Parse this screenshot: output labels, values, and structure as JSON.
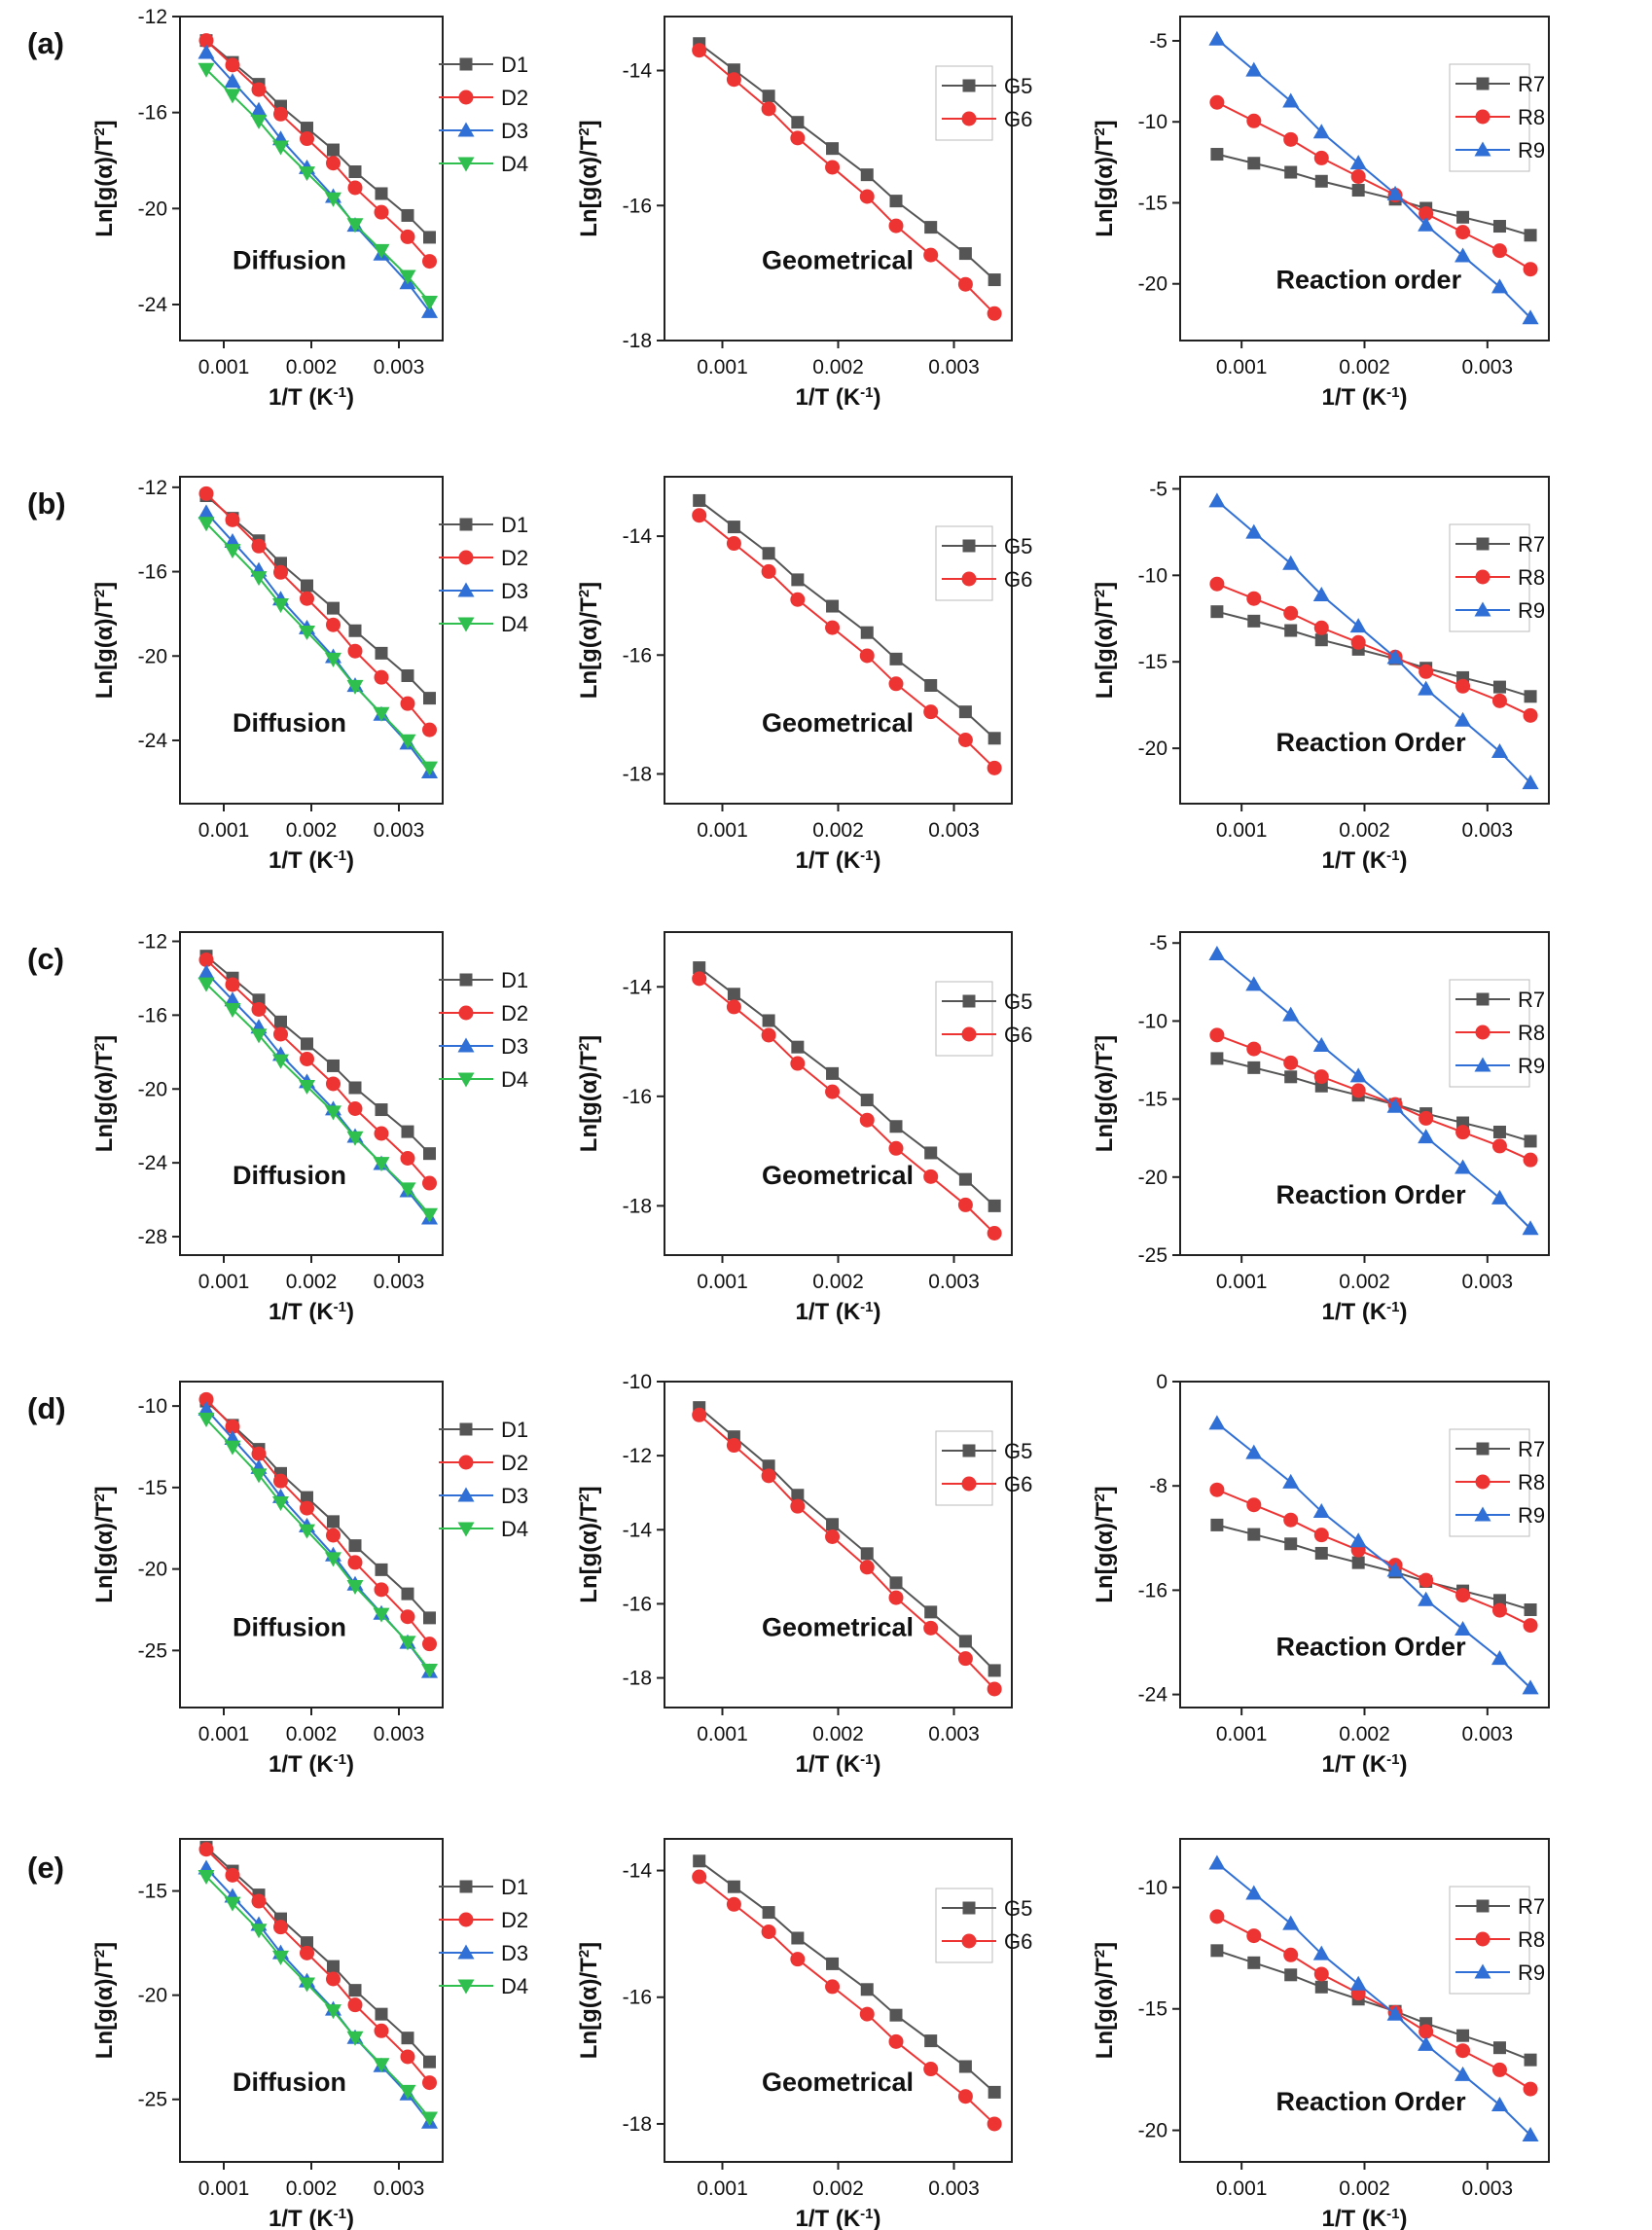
{
  "figure": {
    "row_labels": [
      "(a)",
      "(b)",
      "(c)",
      "(d)",
      "(e)"
    ],
    "colors": {
      "D1": "#555555",
      "D2": "#ee3333",
      "D3": "#2f6fd6",
      "D4": "#2fbf4f",
      "G5": "#555555",
      "G6": "#ee3333",
      "R7": "#555555",
      "R8": "#ee3333",
      "R9": "#2f6fd6"
    },
    "markers": {
      "D1": "square",
      "D2": "circle",
      "D3": "triangle-up",
      "D4": "triangle-down",
      "G5": "square",
      "G6": "circle",
      "R7": "square",
      "R8": "circle",
      "R9": "triangle-up"
    }
  },
  "chart_data": [
    {
      "type": "line",
      "row": "(a)",
      "annotation": "Diffusion",
      "xlabel": "1/T (K⁻¹)",
      "ylabel": "Ln[g(α)/T²]",
      "xlim": [
        0.0005,
        0.0035
      ],
      "ylim": [
        -25.5,
        -12
      ],
      "xticks": [
        0.001,
        0.002,
        0.003
      ],
      "yticks": [
        -12,
        -16,
        -20,
        -24
      ],
      "x": [
        0.0008,
        0.0011,
        0.0014,
        0.00165,
        0.00195,
        0.00225,
        0.0025,
        0.0028,
        0.0031,
        0.00335
      ],
      "series": [
        {
          "name": "D1",
          "start": -13.0,
          "end": -21.2
        },
        {
          "name": "D2",
          "start": -13.0,
          "end": -22.2
        },
        {
          "name": "D3",
          "start": -13.5,
          "end": -24.3
        },
        {
          "name": "D4",
          "start": -14.2,
          "end": -23.9
        }
      ]
    },
    {
      "type": "line",
      "row": "(a)",
      "annotation": "Geometrical",
      "xlabel": "1/T (K⁻¹)",
      "ylabel": "Ln[g(α)/T²]",
      "xlim": [
        0.0005,
        0.0035
      ],
      "ylim": [
        -18,
        -13.2
      ],
      "xticks": [
        0.001,
        0.002,
        0.003
      ],
      "yticks": [
        -14,
        -16,
        -18
      ],
      "x": [
        0.0008,
        0.0011,
        0.0014,
        0.00165,
        0.00195,
        0.00225,
        0.0025,
        0.0028,
        0.0031,
        0.00335
      ],
      "series": [
        {
          "name": "G5",
          "start": -13.6,
          "end": -17.1
        },
        {
          "name": "G6",
          "start": -13.7,
          "end": -17.6
        }
      ]
    },
    {
      "type": "line",
      "row": "(a)",
      "annotation": "Reaction order",
      "xlabel": "1/T (K⁻¹)",
      "ylabel": "Ln[g(α)/T²]",
      "xlim": [
        0.0005,
        0.0035
      ],
      "ylim": [
        -23.5,
        -3.5
      ],
      "xticks": [
        0.001,
        0.002,
        0.003
      ],
      "yticks": [
        -5,
        -10,
        -15,
        -20
      ],
      "x": [
        0.0008,
        0.0011,
        0.0014,
        0.00165,
        0.00195,
        0.00225,
        0.0025,
        0.0028,
        0.0031,
        0.00335
      ],
      "series": [
        {
          "name": "R7",
          "start": -12.0,
          "end": -17.0
        },
        {
          "name": "R8",
          "start": -8.8,
          "end": -19.1
        },
        {
          "name": "R9",
          "start": -4.9,
          "end": -22.1
        }
      ]
    },
    {
      "type": "line",
      "row": "(b)",
      "annotation": "Diffusion",
      "xlabel": "1/T (K⁻¹)",
      "ylabel": "Ln[g(α)/T²]",
      "xlim": [
        0.0005,
        0.0035
      ],
      "ylim": [
        -27,
        -11.5
      ],
      "xticks": [
        0.001,
        0.002,
        0.003
      ],
      "yticks": [
        -12,
        -16,
        -20,
        -24
      ],
      "x": [
        0.0008,
        0.0011,
        0.0014,
        0.00165,
        0.00195,
        0.00225,
        0.0025,
        0.0028,
        0.0031,
        0.00335
      ],
      "series": [
        {
          "name": "D1",
          "start": -12.4,
          "end": -22.0
        },
        {
          "name": "D2",
          "start": -12.3,
          "end": -23.5
        },
        {
          "name": "D3",
          "start": -13.2,
          "end": -25.5
        },
        {
          "name": "D4",
          "start": -13.7,
          "end": -25.3
        }
      ]
    },
    {
      "type": "line",
      "row": "(b)",
      "annotation": "Geometrical",
      "xlabel": "1/T (K⁻¹)",
      "ylabel": "Ln[g(α)/T²]",
      "xlim": [
        0.0005,
        0.0035
      ],
      "ylim": [
        -18.5,
        -13.0
      ],
      "xticks": [
        0.001,
        0.002,
        0.003
      ],
      "yticks": [
        -14,
        -16,
        -18
      ],
      "x": [
        0.0008,
        0.0011,
        0.0014,
        0.00165,
        0.00195,
        0.00225,
        0.0025,
        0.0028,
        0.0031,
        0.00335
      ],
      "series": [
        {
          "name": "G5",
          "start": -13.4,
          "end": -17.4
        },
        {
          "name": "G6",
          "start": -13.65,
          "end": -17.9
        }
      ]
    },
    {
      "type": "line",
      "row": "(b)",
      "annotation": "Reaction Order",
      "xlabel": "1/T (K⁻¹)",
      "ylabel": "Ln[g(α)/T²]",
      "xlim": [
        0.0005,
        0.0035
      ],
      "ylim": [
        -23.2,
        -4.3
      ],
      "xticks": [
        0.001,
        0.002,
        0.003
      ],
      "yticks": [
        -5,
        -10,
        -15,
        -20
      ],
      "x": [
        0.0008,
        0.0011,
        0.0014,
        0.00165,
        0.00195,
        0.00225,
        0.0025,
        0.0028,
        0.0031,
        0.00335
      ],
      "series": [
        {
          "name": "R7",
          "start": -12.1,
          "end": -17.0
        },
        {
          "name": "R8",
          "start": -10.5,
          "end": -18.1
        },
        {
          "name": "R9",
          "start": -5.7,
          "end": -22.0
        }
      ]
    },
    {
      "type": "line",
      "row": "(c)",
      "annotation": "Diffusion",
      "xlabel": "1/T (K⁻¹)",
      "ylabel": "Ln[g(α)/T²]",
      "xlim": [
        0.0005,
        0.0035
      ],
      "ylim": [
        -29,
        -11.5
      ],
      "xticks": [
        0.001,
        0.002,
        0.003
      ],
      "yticks": [
        -12,
        -16,
        -20,
        -24,
        -28
      ],
      "x": [
        0.0008,
        0.0011,
        0.0014,
        0.00165,
        0.00195,
        0.00225,
        0.0025,
        0.0028,
        0.0031,
        0.00335
      ],
      "series": [
        {
          "name": "D1",
          "start": -12.8,
          "end": -23.5
        },
        {
          "name": "D2",
          "start": -13.0,
          "end": -25.1
        },
        {
          "name": "D3",
          "start": -13.7,
          "end": -27.0
        },
        {
          "name": "D4",
          "start": -14.3,
          "end": -26.8
        }
      ]
    },
    {
      "type": "line",
      "row": "(c)",
      "annotation": "Geometrical",
      "xlabel": "1/T (K⁻¹)",
      "ylabel": "Ln[g(α)/T²]",
      "xlim": [
        0.0005,
        0.0035
      ],
      "ylim": [
        -18.9,
        -13.0
      ],
      "xticks": [
        0.001,
        0.002,
        0.003
      ],
      "yticks": [
        -14,
        -16,
        -18
      ],
      "x": [
        0.0008,
        0.0011,
        0.0014,
        0.00165,
        0.00195,
        0.00225,
        0.0025,
        0.0028,
        0.0031,
        0.00335
      ],
      "series": [
        {
          "name": "G5",
          "start": -13.65,
          "end": -18.0
        },
        {
          "name": "G6",
          "start": -13.85,
          "end": -18.5
        }
      ]
    },
    {
      "type": "line",
      "row": "(c)",
      "annotation": "Reaction Order",
      "xlabel": "1/T (K⁻¹)",
      "ylabel": "Ln[g(α)/T²]",
      "xlim": [
        0.0005,
        0.0035
      ],
      "ylim": [
        -25,
        -4.3
      ],
      "xticks": [
        0.001,
        0.002,
        0.003
      ],
      "yticks": [
        -5,
        -10,
        -15,
        -20,
        -25
      ],
      "x": [
        0.0008,
        0.0011,
        0.0014,
        0.00165,
        0.00195,
        0.00225,
        0.0025,
        0.0028,
        0.0031,
        0.00335
      ],
      "series": [
        {
          "name": "R7",
          "start": -12.4,
          "end": -17.7
        },
        {
          "name": "R8",
          "start": -10.9,
          "end": -18.9
        },
        {
          "name": "R9",
          "start": -5.7,
          "end": -23.3
        }
      ]
    },
    {
      "type": "line",
      "row": "(d)",
      "annotation": "Diffusion",
      "xlabel": "1/T (K⁻¹)",
      "ylabel": "Ln[g(α)/T²]",
      "xlim": [
        0.0005,
        0.0035
      ],
      "ylim": [
        -28.5,
        -8.5
      ],
      "xticks": [
        0.001,
        0.002,
        0.003
      ],
      "yticks": [
        -10,
        -15,
        -20,
        -25
      ],
      "x": [
        0.0008,
        0.0011,
        0.0014,
        0.00165,
        0.00195,
        0.00225,
        0.0025,
        0.0028,
        0.0031,
        0.00335
      ],
      "series": [
        {
          "name": "D1",
          "start": -9.7,
          "end": -23.0
        },
        {
          "name": "D2",
          "start": -9.6,
          "end": -24.6
        },
        {
          "name": "D3",
          "start": -10.2,
          "end": -26.3
        },
        {
          "name": "D4",
          "start": -10.8,
          "end": -26.2
        }
      ]
    },
    {
      "type": "line",
      "row": "(d)",
      "annotation": "Geometrical",
      "xlabel": "1/T (K⁻¹)",
      "ylabel": "Ln[g(α)/T²]",
      "xlim": [
        0.0005,
        0.0035
      ],
      "ylim": [
        -18.8,
        -10.0
      ],
      "xticks": [
        0.001,
        0.002,
        0.003
      ],
      "yticks": [
        -10,
        -12,
        -14,
        -16,
        -18
      ],
      "x": [
        0.0008,
        0.0011,
        0.0014,
        0.00165,
        0.00195,
        0.00225,
        0.0025,
        0.0028,
        0.0031,
        0.00335
      ],
      "series": [
        {
          "name": "G5",
          "start": -10.7,
          "end": -17.8
        },
        {
          "name": "G6",
          "start": -10.9,
          "end": -18.3
        }
      ]
    },
    {
      "type": "line",
      "row": "(d)",
      "annotation": "Reaction Order",
      "xlabel": "1/T (K⁻¹)",
      "ylabel": "Ln[g(α)/T²]",
      "xlim": [
        0.0005,
        0.0035
      ],
      "ylim": [
        -25,
        0
      ],
      "xticks": [
        0.001,
        0.002,
        0.003
      ],
      "yticks": [
        0,
        -8,
        -16,
        -24
      ],
      "x": [
        0.0008,
        0.0011,
        0.0014,
        0.00165,
        0.00195,
        0.00225,
        0.0025,
        0.0028,
        0.0031,
        0.00335
      ],
      "series": [
        {
          "name": "R7",
          "start": -11.0,
          "end": -17.5
        },
        {
          "name": "R8",
          "start": -8.3,
          "end": -18.7
        },
        {
          "name": "R9",
          "start": -3.2,
          "end": -23.5
        }
      ]
    },
    {
      "type": "line",
      "row": "(e)",
      "annotation": "Diffusion",
      "xlabel": "1/T (K⁻¹)",
      "ylabel": "Ln[g(α)/T²]",
      "xlim": [
        0.0005,
        0.0035
      ],
      "ylim": [
        -28,
        -12.5
      ],
      "xticks": [
        0.001,
        0.002,
        0.003
      ],
      "yticks": [
        -15,
        -20,
        -25
      ],
      "x": [
        0.0008,
        0.0011,
        0.0014,
        0.00165,
        0.00195,
        0.00225,
        0.0025,
        0.0028,
        0.0031,
        0.00335
      ],
      "series": [
        {
          "name": "D1",
          "start": -12.9,
          "end": -23.2
        },
        {
          "name": "D2",
          "start": -13.0,
          "end": -24.2
        },
        {
          "name": "D3",
          "start": -13.9,
          "end": -26.1
        },
        {
          "name": "D4",
          "start": -14.3,
          "end": -25.9
        }
      ]
    },
    {
      "type": "line",
      "row": "(e)",
      "annotation": "Geometrical",
      "xlabel": "1/T (K⁻¹)",
      "ylabel": "Ln[g(α)/T²]",
      "xlim": [
        0.0005,
        0.0035
      ],
      "ylim": [
        -18.6,
        -13.5
      ],
      "xticks": [
        0.001,
        0.002,
        0.003
      ],
      "yticks": [
        -14,
        -16,
        -18
      ],
      "x": [
        0.0008,
        0.0011,
        0.0014,
        0.00165,
        0.00195,
        0.00225,
        0.0025,
        0.0028,
        0.0031,
        0.00335
      ],
      "series": [
        {
          "name": "G5",
          "start": -13.85,
          "end": -17.5
        },
        {
          "name": "G6",
          "start": -14.1,
          "end": -18.0
        }
      ]
    },
    {
      "type": "line",
      "row": "(e)",
      "annotation": "Reaction Order",
      "xlabel": "1/T (K⁻¹)",
      "ylabel": "Ln[g(α)/T²]",
      "xlim": [
        0.0005,
        0.0035
      ],
      "ylim": [
        -21.3,
        -8.0
      ],
      "xticks": [
        0.001,
        0.002,
        0.003
      ],
      "yticks": [
        -10,
        -15,
        -20
      ],
      "x": [
        0.0008,
        0.0011,
        0.0014,
        0.00165,
        0.00195,
        0.00225,
        0.0025,
        0.0028,
        0.0031,
        0.00335
      ],
      "series": [
        {
          "name": "R7",
          "start": -12.6,
          "end": -17.1
        },
        {
          "name": "R8",
          "start": -11.2,
          "end": -18.3
        },
        {
          "name": "R9",
          "start": -9.0,
          "end": -20.2
        }
      ]
    }
  ]
}
